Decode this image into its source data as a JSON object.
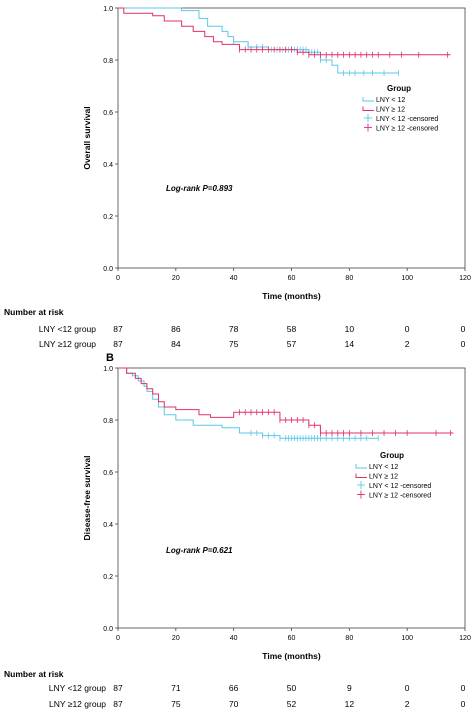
{
  "chart_data": [
    {
      "type": "line",
      "subtype": "kaplan-meier",
      "panel_label": "",
      "ylabel": "Overall survival",
      "xlabel": "Time (months)",
      "xlim": [
        0,
        120
      ],
      "ylim": [
        0,
        1.0
      ],
      "x_ticks": [
        0,
        20,
        40,
        60,
        80,
        100,
        120
      ],
      "y_ticks": [
        0.0,
        0.2,
        0.4,
        0.6,
        0.8,
        1.0
      ],
      "y_tick_labels": [
        "0.0",
        "0.2",
        "0.4",
        "0.6",
        "0.8",
        "1.0"
      ],
      "annotation": "Log-rank P=0.893",
      "legend": {
        "title": "Group",
        "placement": "right",
        "entries": [
          "LNY < 12",
          "LNY ≥ 12",
          "LNY < 12 -censored",
          "LNY ≥ 12 -censored"
        ]
      },
      "series": [
        {
          "name": "LNY < 12",
          "color": "#5bc8e8",
          "steps": [
            [
              0,
              1.0
            ],
            [
              22,
              0.99
            ],
            [
              28,
              0.96
            ],
            [
              31,
              0.93
            ],
            [
              36,
              0.91
            ],
            [
              38,
              0.89
            ],
            [
              40,
              0.87
            ],
            [
              45,
              0.85
            ],
            [
              52,
              0.84
            ],
            [
              66,
              0.83
            ],
            [
              70,
              0.8
            ],
            [
              74,
              0.78
            ],
            [
              76,
              0.75
            ],
            [
              97,
              0.75
            ]
          ],
          "censored": [
            40,
            45,
            48,
            50,
            53,
            55,
            57,
            58,
            59,
            60,
            61,
            62,
            63,
            64,
            65,
            66,
            67,
            68,
            69,
            70,
            72,
            78,
            80,
            82,
            85,
            88,
            92,
            97
          ]
        },
        {
          "name": "LNY ≥ 12",
          "color": "#e0306a",
          "steps": [
            [
              0,
              1.0
            ],
            [
              2,
              0.98
            ],
            [
              12,
              0.97
            ],
            [
              16,
              0.95
            ],
            [
              22,
              0.93
            ],
            [
              26,
              0.91
            ],
            [
              30,
              0.89
            ],
            [
              33,
              0.87
            ],
            [
              36,
              0.86
            ],
            [
              42,
              0.84
            ],
            [
              62,
              0.83
            ],
            [
              66,
              0.82
            ],
            [
              115,
              0.82
            ]
          ],
          "censored": [
            42,
            44,
            46,
            48,
            50,
            52,
            54,
            56,
            58,
            60,
            62,
            64,
            66,
            68,
            70,
            72,
            74,
            76,
            78,
            80,
            82,
            84,
            86,
            88,
            90,
            94,
            98,
            104,
            114
          ]
        }
      ],
      "risk_table": {
        "title": "Number at risk",
        "rows": [
          {
            "label": "LNY <12 group",
            "values": [
              "87",
              "86",
              "78",
              "58",
              "10",
              "0",
              "0"
            ]
          },
          {
            "label": "LNY ≥12 group",
            "values": [
              "87",
              "84",
              "75",
              "57",
              "14",
              "2",
              "0"
            ]
          }
        ]
      }
    },
    {
      "type": "line",
      "subtype": "kaplan-meier",
      "panel_label": "B",
      "ylabel": "Disease-free survival",
      "xlabel": "Time (months)",
      "xlim": [
        0,
        120
      ],
      "ylim": [
        0,
        1.0
      ],
      "x_ticks": [
        0,
        20,
        40,
        60,
        80,
        100,
        120
      ],
      "y_ticks": [
        0.0,
        0.2,
        0.4,
        0.6,
        0.8,
        1.0
      ],
      "y_tick_labels": [
        "0.0",
        "0.2",
        "0.4",
        "0.6",
        "0.8",
        "1.0"
      ],
      "annotation": "Log-rank P=0.621",
      "legend": {
        "title": "Group",
        "placement": "right",
        "entries": [
          "LNY < 12",
          "LNY ≥ 12",
          "LNY < 12 -censored",
          "LNY ≥ 12 -censored"
        ]
      },
      "series": [
        {
          "name": "LNY < 12",
          "color": "#5bc8e8",
          "steps": [
            [
              0,
              1.0
            ],
            [
              3,
              0.98
            ],
            [
              5,
              0.97
            ],
            [
              7,
              0.95
            ],
            [
              9,
              0.93
            ],
            [
              10,
              0.91
            ],
            [
              12,
              0.88
            ],
            [
              14,
              0.85
            ],
            [
              16,
              0.82
            ],
            [
              20,
              0.8
            ],
            [
              26,
              0.78
            ],
            [
              36,
              0.77
            ],
            [
              42,
              0.75
            ],
            [
              50,
              0.74
            ],
            [
              56,
              0.73
            ],
            [
              90,
              0.73
            ]
          ],
          "censored": [
            46,
            48,
            50,
            52,
            54,
            56,
            58,
            59,
            60,
            61,
            62,
            63,
            64,
            65,
            66,
            67,
            68,
            69,
            70,
            72,
            74,
            76,
            78,
            80,
            82,
            84,
            86,
            90
          ]
        },
        {
          "name": "LNY ≥ 12",
          "color": "#e0306a",
          "steps": [
            [
              0,
              1.0
            ],
            [
              3,
              0.98
            ],
            [
              6,
              0.96
            ],
            [
              8,
              0.94
            ],
            [
              10,
              0.92
            ],
            [
              12,
              0.9
            ],
            [
              14,
              0.87
            ],
            [
              16,
              0.85
            ],
            [
              20,
              0.84
            ],
            [
              28,
              0.82
            ],
            [
              32,
              0.81
            ],
            [
              40,
              0.83
            ],
            [
              56,
              0.8
            ],
            [
              66,
              0.78
            ],
            [
              70,
              0.75
            ],
            [
              116,
              0.75
            ]
          ],
          "censored": [
            42,
            44,
            46,
            48,
            50,
            52,
            54,
            56,
            58,
            60,
            62,
            64,
            66,
            68,
            70,
            72,
            74,
            76,
            78,
            80,
            84,
            88,
            92,
            96,
            100,
            110,
            115
          ]
        }
      ],
      "risk_table": {
        "title": "Number at risk",
        "rows": [
          {
            "label": "LNY <12 group",
            "values": [
              "87",
              "71",
              "66",
              "50",
              "9",
              "0",
              "0"
            ]
          },
          {
            "label": "LNY ≥12 group",
            "values": [
              "87",
              "75",
              "70",
              "52",
              "12",
              "2",
              "0"
            ]
          }
        ]
      }
    }
  ]
}
